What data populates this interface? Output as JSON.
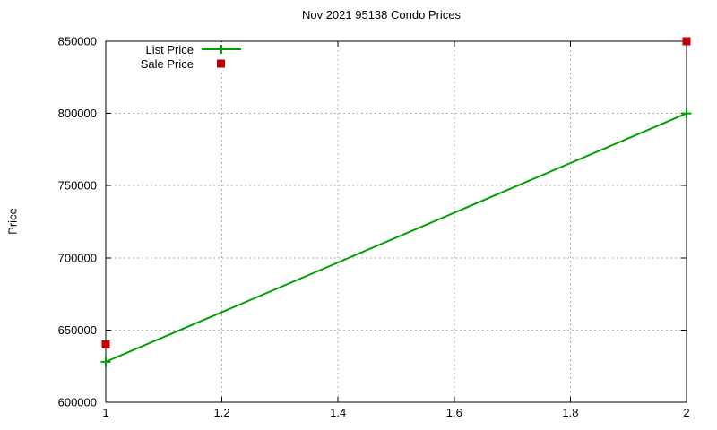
{
  "chart_data": {
    "type": "line",
    "title": "Nov 2021 95138 Condo Prices",
    "ylabel": "Price",
    "xlim": [
      1,
      2
    ],
    "ylim": [
      600000,
      850000
    ],
    "xticks": [
      1,
      1.2,
      1.4,
      1.6,
      1.8,
      2
    ],
    "yticks": [
      600000,
      650000,
      700000,
      750000,
      800000,
      850000
    ],
    "grid": true,
    "grid_style": "dotted-gray",
    "grid_color": "#b0b0b0",
    "legend_position": "top-left-inside",
    "background_color": "#ffffff",
    "axis_color": "#000000",
    "series": [
      {
        "name": "List Price",
        "style": "linespoints",
        "marker": "plus",
        "color": "#00a000",
        "x": [
          1,
          2
        ],
        "y": [
          628000,
          800000
        ]
      },
      {
        "name": "Sale Price",
        "style": "points",
        "marker": "filled-square",
        "color": "#c00000",
        "x": [
          1,
          2
        ],
        "y": [
          640000,
          850000
        ]
      }
    ]
  }
}
